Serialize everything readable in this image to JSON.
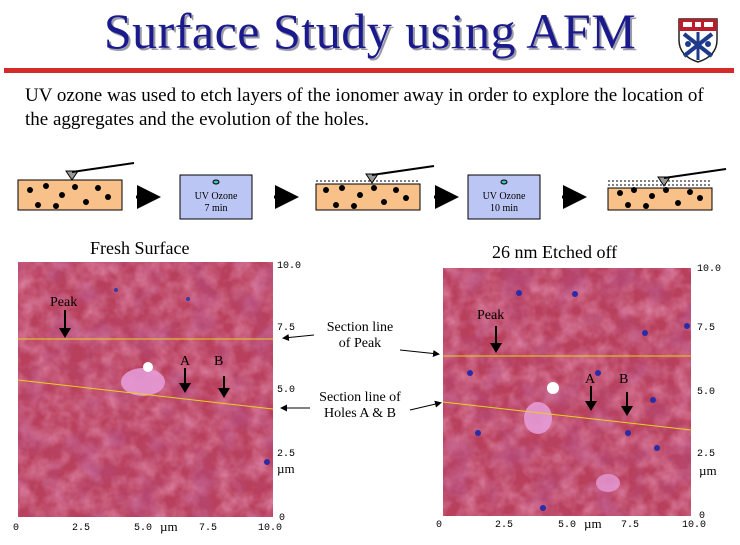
{
  "title": "Surface Study using AFM",
  "intro": "UV ozone was used to etch layers of the ionomer away in order to explore the location of the aggregates and the evolution of the holes.",
  "process": {
    "step1": {
      "label": "UV Ozone",
      "time": "7 min"
    },
    "step2": {
      "label": "UV Ozone",
      "time": "10 min"
    }
  },
  "maps": {
    "left": {
      "title": "Fresh Surface",
      "peak": "Peak",
      "a": "A",
      "b": "B",
      "yticks": [
        "10.0",
        "7.5",
        "5.0",
        "2.5",
        "0"
      ],
      "xticks": [
        "0",
        "2.5",
        "5.0",
        "7.5",
        "10.0"
      ],
      "unit": "µm"
    },
    "right": {
      "title": "26 nm Etched off",
      "peak": "Peak",
      "a": "A",
      "b": "B",
      "yticks": [
        "10.0",
        "7.5",
        "5.0",
        "2.5",
        "0"
      ],
      "xticks": [
        "0",
        "2.5",
        "5.0",
        "7.5",
        "10.0"
      ],
      "unit": "µm"
    }
  },
  "annotations": {
    "peak_line": [
      "Section line",
      "of Peak"
    ],
    "holes_line": [
      "Section line of",
      "Holes A  & B"
    ]
  },
  "colors": {
    "title": "#1a1a8c",
    "rule": "#d42a2a",
    "film": "#f7c189",
    "ozone_box": "#bcc6f4",
    "afm_base": "#b8405d",
    "section_line": "#e8d020"
  }
}
